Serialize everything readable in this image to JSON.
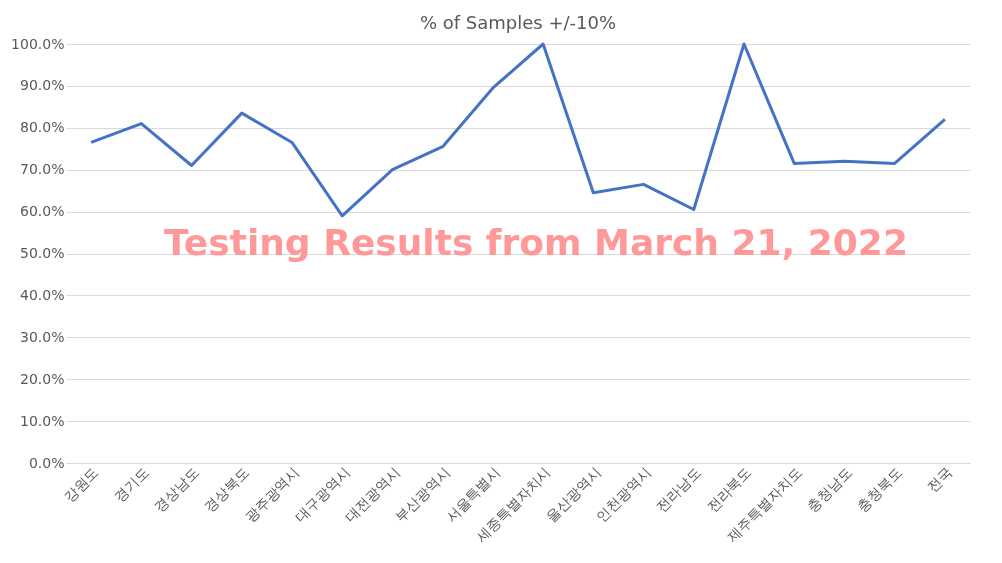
{
  "chart_data": {
    "type": "line",
    "title": "% of Samples +/-10%",
    "categories": [
      "강원도",
      "경기도",
      "경상남도",
      "경상북도",
      "광주광역시",
      "대구광역시",
      "대전광역시",
      "부산광역시",
      "서울특별시",
      "세종특별자치시",
      "울산광역시",
      "인천광역시",
      "전라남도",
      "전라북도",
      "제주특별자치도",
      "충청남도",
      "충청북도",
      "전국"
    ],
    "series": [
      {
        "color": "#4472c4",
        "values": [
          76.5,
          81,
          71,
          83.5,
          76.5,
          59,
          70,
          75.5,
          89.5,
          100,
          64.5,
          66.5,
          60.5,
          100,
          71.5,
          72,
          71.5,
          82
        ]
      }
    ],
    "ylim": [
      0,
      100
    ],
    "yticks": [
      {
        "value": 0,
        "label": "0.0%"
      },
      {
        "value": 10,
        "label": "10.0%"
      },
      {
        "value": 20,
        "label": "20.0%"
      },
      {
        "value": 30,
        "label": "30.0%"
      },
      {
        "value": 40,
        "label": "40.0%"
      },
      {
        "value": 50,
        "label": "50.0%"
      },
      {
        "value": 60,
        "label": "60.0%"
      },
      {
        "value": 70,
        "label": "70.0%"
      },
      {
        "value": 80,
        "label": "80.0%"
      },
      {
        "value": 90,
        "label": "90.0%"
      },
      {
        "value": 100,
        "label": "100.0%"
      }
    ],
    "grid": "y",
    "marker": "none",
    "line_style": "solid",
    "annotations": [
      "Testing Results from March 21, 2022"
    ]
  }
}
